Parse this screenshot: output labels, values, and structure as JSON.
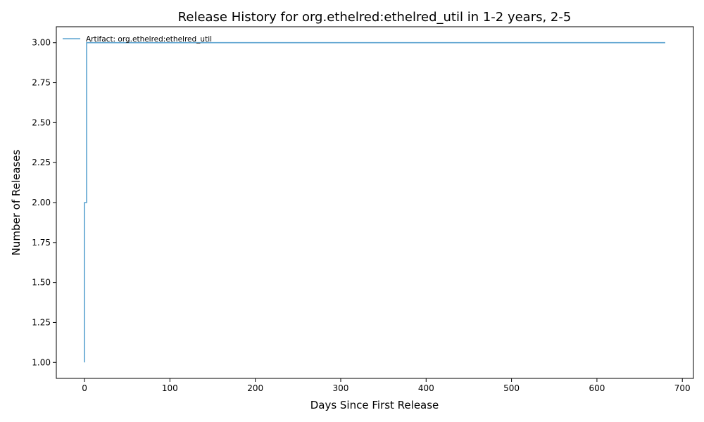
{
  "chart_data": {
    "type": "line",
    "step": true,
    "title": "Release History for org.ethelred:ethelred_util in 1-2 years, 2-5",
    "xlabel": "Days Since First Release",
    "ylabel": "Number of Releases",
    "xlim": [
      -33,
      713
    ],
    "ylim": [
      0.9,
      3.1
    ],
    "xticks": [
      0,
      100,
      200,
      300,
      400,
      500,
      600,
      700
    ],
    "xtick_labels": [
      "0",
      "100",
      "200",
      "300",
      "400",
      "500",
      "600",
      "700"
    ],
    "yticks": [
      1.0,
      1.25,
      1.5,
      1.75,
      2.0,
      2.25,
      2.5,
      2.75,
      3.0
    ],
    "ytick_labels": [
      "1.00",
      "1.25",
      "1.50",
      "1.75",
      "2.00",
      "2.25",
      "2.50",
      "2.75",
      "3.00"
    ],
    "grid": false,
    "legend_position": "top-left",
    "series": [
      {
        "name": "Artifact: org.ethelred:ethelred_util",
        "color": "#5ba3d0",
        "points": [
          {
            "x": 0,
            "y": 1
          },
          {
            "x": 0,
            "y": 2
          },
          {
            "x": 2.5,
            "y": 2
          },
          {
            "x": 2.5,
            "y": 3
          },
          {
            "x": 680,
            "y": 3
          }
        ]
      }
    ]
  }
}
